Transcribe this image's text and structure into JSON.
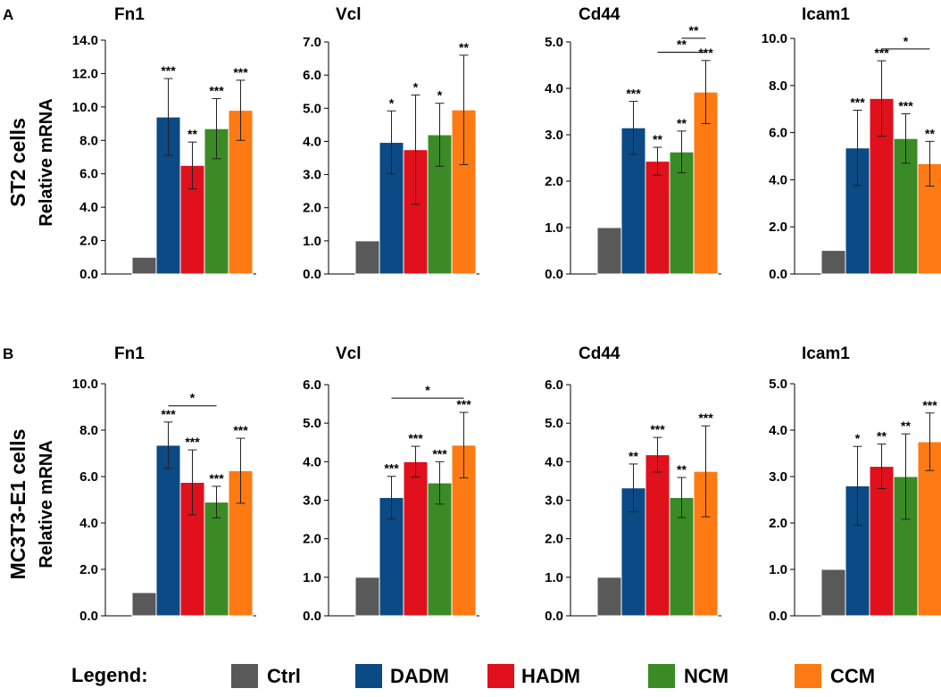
{
  "figure": {
    "panels": [
      {
        "letter": "A",
        "row_label": "ST2 cells",
        "y_label": "Relative mRNA"
      },
      {
        "letter": "B",
        "row_label": "MC3T3-E1 cells",
        "y_label": "Relative mRNA"
      }
    ],
    "legend": {
      "title": "Legend:",
      "groups": [
        "Ctrl",
        "DADM",
        "HADM",
        "NCM",
        "CCM"
      ],
      "colors": [
        "#595959",
        "#0b4a84",
        "#e0101c",
        "#3a8b26",
        "#ff7a12"
      ]
    }
  },
  "chart_data": [
    {
      "type": "bar",
      "title": "Fn1",
      "panel": "A",
      "categories": [
        "Ctrl",
        "DADM",
        "HADM",
        "NCM",
        "CCM"
      ],
      "values": [
        1.0,
        9.4,
        6.5,
        8.7,
        9.8
      ],
      "errors": [
        0,
        2.3,
        1.4,
        1.8,
        1.8
      ],
      "sig": [
        "",
        "***",
        "**",
        "***",
        "***"
      ],
      "brackets": [],
      "ylim": [
        0,
        14
      ],
      "yticks": [
        "0.0",
        "2.0",
        "4.0",
        "6.0",
        "8.0",
        "10.0",
        "12.0",
        "14.0"
      ],
      "ylabel": "Relative mRNA"
    },
    {
      "type": "bar",
      "title": "Vcl",
      "panel": "A",
      "categories": [
        "Ctrl",
        "DADM",
        "HADM",
        "NCM",
        "CCM"
      ],
      "values": [
        1.0,
        3.97,
        3.75,
        4.2,
        4.95
      ],
      "errors": [
        0,
        0.95,
        1.65,
        0.95,
        1.65
      ],
      "sig": [
        "",
        "*",
        "*",
        "*",
        "**"
      ],
      "brackets": [],
      "ylim": [
        0,
        7
      ],
      "yticks": [
        "0.0",
        "1.0",
        "2.0",
        "3.0",
        "4.0",
        "5.0",
        "6.0",
        "7.0"
      ],
      "ylabel": "Relative mRNA"
    },
    {
      "type": "bar",
      "title": "Cd44",
      "panel": "A",
      "categories": [
        "Ctrl",
        "DADM",
        "HADM",
        "NCM",
        "CCM"
      ],
      "values": [
        1.0,
        3.15,
        2.43,
        2.63,
        3.92
      ],
      "errors": [
        0,
        0.57,
        0.3,
        0.45,
        0.68
      ],
      "sig": [
        "",
        "***",
        "**",
        "**",
        "***"
      ],
      "brackets": [
        {
          "from": 2,
          "to": 4,
          "y": 4.78,
          "label": "**"
        },
        {
          "from": 3,
          "to": 4,
          "y": 5.08,
          "label": "**"
        }
      ],
      "ylim": [
        0,
        5
      ],
      "yticks": [
        "0.0",
        "1.0",
        "2.0",
        "3.0",
        "4.0",
        "5.0"
      ],
      "ylabel": "Relative mRNA"
    },
    {
      "type": "bar",
      "title": "Icam1",
      "panel": "A",
      "categories": [
        "Ctrl",
        "DADM",
        "HADM",
        "NCM",
        "CCM"
      ],
      "values": [
        1.0,
        5.35,
        7.45,
        5.75,
        4.68
      ],
      "errors": [
        0,
        1.6,
        1.6,
        1.05,
        0.95
      ],
      "sig": [
        "",
        "***",
        "***",
        "***",
        "**"
      ],
      "brackets": [
        {
          "from": 2,
          "to": 4,
          "y": 9.55,
          "label": "*"
        }
      ],
      "ylim": [
        0,
        10
      ],
      "yticks": [
        "0.0",
        "2.0",
        "4.0",
        "6.0",
        "8.0",
        "10.0"
      ],
      "ylabel": "Relative mRNA"
    },
    {
      "type": "bar",
      "title": "Fn1",
      "panel": "B",
      "categories": [
        "Ctrl",
        "DADM",
        "HADM",
        "NCM",
        "CCM"
      ],
      "values": [
        1.0,
        7.35,
        5.75,
        4.9,
        6.25
      ],
      "errors": [
        0,
        1.0,
        1.4,
        0.68,
        1.4
      ],
      "sig": [
        "",
        "***",
        "***",
        "***",
        "***"
      ],
      "brackets": [
        {
          "from": 1,
          "to": 3,
          "y": 9.05,
          "label": "*"
        }
      ],
      "ylim": [
        0,
        10
      ],
      "yticks": [
        "0.0",
        "2.0",
        "4.0",
        "6.0",
        "8.0",
        "10.0"
      ],
      "ylabel": "Relative mRNA"
    },
    {
      "type": "bar",
      "title": "Vcl",
      "panel": "B",
      "categories": [
        "Ctrl",
        "DADM",
        "HADM",
        "NCM",
        "CCM"
      ],
      "values": [
        1.0,
        3.07,
        4.0,
        3.45,
        4.43
      ],
      "errors": [
        0,
        0.55,
        0.4,
        0.55,
        0.85
      ],
      "sig": [
        "",
        "***",
        "***",
        "***",
        "***"
      ],
      "brackets": [
        {
          "from": 1,
          "to": 4,
          "y": 5.65,
          "label": "*"
        }
      ],
      "ylim": [
        0,
        6
      ],
      "yticks": [
        "0.0",
        "1.0",
        "2.0",
        "3.0",
        "4.0",
        "5.0",
        "6.0"
      ],
      "ylabel": "Relative mRNA"
    },
    {
      "type": "bar",
      "title": "Cd44",
      "panel": "B",
      "categories": [
        "Ctrl",
        "DADM",
        "HADM",
        "NCM",
        "CCM"
      ],
      "values": [
        1.0,
        3.32,
        4.18,
        3.07,
        3.75
      ],
      "errors": [
        0,
        0.62,
        0.45,
        0.52,
        1.18
      ],
      "sig": [
        "",
        "**",
        "***",
        "**",
        "***"
      ],
      "brackets": [],
      "ylim": [
        0,
        6
      ],
      "yticks": [
        "0.0",
        "1.0",
        "2.0",
        "3.0",
        "4.0",
        "5.0",
        "6.0"
      ],
      "ylabel": "Relative mRNA"
    },
    {
      "type": "bar",
      "title": "Icam1",
      "panel": "B",
      "categories": [
        "Ctrl",
        "DADM",
        "HADM",
        "NCM",
        "CCM"
      ],
      "values": [
        1.0,
        2.8,
        3.22,
        3.0,
        3.75
      ],
      "errors": [
        0,
        0.85,
        0.48,
        0.92,
        0.62
      ],
      "sig": [
        "",
        "*",
        "**",
        "**",
        "***"
      ],
      "brackets": [],
      "ylim": [
        0,
        5
      ],
      "yticks": [
        "0.0",
        "1.0",
        "2.0",
        "3.0",
        "4.0",
        "5.0"
      ],
      "ylabel": "Relative mRNA"
    }
  ]
}
